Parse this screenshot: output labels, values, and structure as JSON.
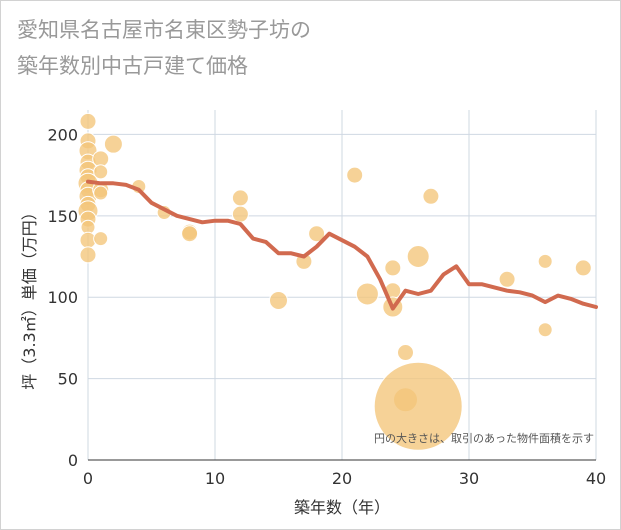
{
  "chart_data": {
    "type": "scatter",
    "title": "愛知県名古屋市名東区勢子坊の\n築年数別中古戸建て価格",
    "xlabel": "築年数（年）",
    "ylabel": "坪（3.3㎡）単価（万円）",
    "xlim": [
      0,
      40
    ],
    "ylim": [
      0,
      215
    ],
    "xticks": [
      0,
      10,
      20,
      30,
      40
    ],
    "yticks": [
      0,
      50,
      100,
      150,
      200
    ],
    "grid": true,
    "note": "円の大きさは、取引のあった物件面積を示す",
    "colors": {
      "points": "#f3c57a",
      "line": "#d16a4f",
      "grid": "#cfd8e2"
    },
    "series": [
      {
        "type": "scatter",
        "points": [
          {
            "x": 0,
            "y": 208,
            "r": 8
          },
          {
            "x": 0,
            "y": 196,
            "r": 8
          },
          {
            "x": 0,
            "y": 190,
            "r": 9
          },
          {
            "x": 0,
            "y": 183,
            "r": 8
          },
          {
            "x": 0,
            "y": 178,
            "r": 9
          },
          {
            "x": 0,
            "y": 174,
            "r": 8
          },
          {
            "x": 0,
            "y": 170,
            "r": 10
          },
          {
            "x": 0,
            "y": 166,
            "r": 8
          },
          {
            "x": 0,
            "y": 162,
            "r": 9
          },
          {
            "x": 0,
            "y": 157,
            "r": 8
          },
          {
            "x": 0,
            "y": 153,
            "r": 10
          },
          {
            "x": 0,
            "y": 148,
            "r": 8
          },
          {
            "x": 0,
            "y": 143,
            "r": 7
          },
          {
            "x": 0,
            "y": 135,
            "r": 8
          },
          {
            "x": 0,
            "y": 126,
            "r": 8
          },
          {
            "x": 1,
            "y": 185,
            "r": 8
          },
          {
            "x": 1,
            "y": 177,
            "r": 7
          },
          {
            "x": 1,
            "y": 166,
            "r": 8
          },
          {
            "x": 1,
            "y": 164,
            "r": 7
          },
          {
            "x": 1,
            "y": 136,
            "r": 7
          },
          {
            "x": 2,
            "y": 194,
            "r": 9
          },
          {
            "x": 4,
            "y": 168,
            "r": 7
          },
          {
            "x": 6,
            "y": 152,
            "r": 7
          },
          {
            "x": 8,
            "y": 140,
            "r": 8
          },
          {
            "x": 8,
            "y": 139,
            "r": 8
          },
          {
            "x": 12,
            "y": 161,
            "r": 8
          },
          {
            "x": 12,
            "y": 151,
            "r": 8
          },
          {
            "x": 15,
            "y": 98,
            "r": 9
          },
          {
            "x": 17,
            "y": 122,
            "r": 8
          },
          {
            "x": 18,
            "y": 139,
            "r": 8
          },
          {
            "x": 21,
            "y": 175,
            "r": 8
          },
          {
            "x": 22,
            "y": 102,
            "r": 11
          },
          {
            "x": 24,
            "y": 118,
            "r": 8
          },
          {
            "x": 24,
            "y": 104,
            "r": 8
          },
          {
            "x": 24,
            "y": 94,
            "r": 10
          },
          {
            "x": 25,
            "y": 66,
            "r": 8
          },
          {
            "x": 25,
            "y": 37,
            "r": 12
          },
          {
            "x": 26,
            "y": 33,
            "r": 44
          },
          {
            "x": 26,
            "y": 125,
            "r": 11
          },
          {
            "x": 27,
            "y": 162,
            "r": 8
          },
          {
            "x": 33,
            "y": 111,
            "r": 8
          },
          {
            "x": 36,
            "y": 122,
            "r": 7
          },
          {
            "x": 36,
            "y": 80,
            "r": 7
          },
          {
            "x": 39,
            "y": 118,
            "r": 8
          }
        ]
      },
      {
        "type": "line",
        "x": [
          0,
          1,
          2,
          3,
          4,
          5,
          6,
          7,
          8,
          9,
          10,
          11,
          12,
          13,
          14,
          15,
          16,
          17,
          18,
          19,
          20,
          21,
          22,
          23,
          24,
          25,
          26,
          27,
          28,
          29,
          30,
          31,
          32,
          33,
          34,
          35,
          36,
          37,
          38,
          39,
          40
        ],
        "y": [
          171,
          170,
          170,
          169,
          166,
          158,
          154,
          150,
          148,
          146,
          147,
          147,
          145,
          136,
          134,
          127,
          127,
          125,
          131,
          139,
          135,
          131,
          125,
          111,
          93,
          104,
          102,
          104,
          114,
          119,
          108,
          108,
          106,
          104,
          103,
          101,
          97,
          101,
          99,
          96,
          94
        ]
      }
    ]
  }
}
